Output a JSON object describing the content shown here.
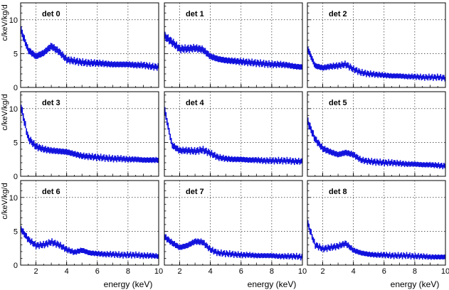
{
  "figure": {
    "ylabel": "c/keV/kg/d",
    "xlabel": "energy (keV)"
  },
  "colors": {
    "data": "#1010dd",
    "axis": "#000000",
    "grid": "#000000"
  },
  "chart_data": {
    "type": "scatter",
    "layout": "3x3 grid of panels",
    "xlabel": "energy (keV)",
    "ylabel": "c/keV/kg/d",
    "xlim": [
      1,
      10
    ],
    "ylim": [
      0,
      12.5
    ],
    "xticks": [
      2,
      4,
      6,
      8,
      10
    ],
    "yticks": [
      0,
      5,
      10
    ],
    "grid": true,
    "series_style": "points with vertical error bars",
    "x": [
      1.0,
      1.5,
      2.0,
      2.5,
      3.0,
      3.5,
      4.0,
      4.5,
      5.0,
      5.5,
      6.0,
      6.5,
      7.0,
      7.5,
      8.0,
      8.5,
      9.0,
      9.5,
      10.0
    ],
    "panels": [
      {
        "name": "det 0",
        "y": [
          8.6,
          5.5,
          4.6,
          5.1,
          6.1,
          5.3,
          4.1,
          3.9,
          3.7,
          3.6,
          3.6,
          3.5,
          3.4,
          3.4,
          3.4,
          3.3,
          3.3,
          3.1,
          3.0
        ]
      },
      {
        "name": "det 1",
        "y": [
          7.6,
          6.7,
          5.7,
          5.7,
          5.8,
          5.6,
          4.6,
          4.2,
          4.0,
          3.9,
          3.8,
          3.7,
          3.6,
          3.5,
          3.4,
          3.4,
          3.3,
          3.1,
          3.0
        ]
      },
      {
        "name": "det 2",
        "y": [
          5.8,
          3.2,
          2.9,
          3.1,
          3.2,
          3.4,
          2.7,
          2.2,
          2.0,
          1.9,
          1.8,
          1.7,
          1.7,
          1.6,
          1.6,
          1.5,
          1.5,
          1.5,
          1.4
        ]
      },
      {
        "name": "det 3",
        "y": [
          10.5,
          5.6,
          4.4,
          4.0,
          3.8,
          3.7,
          3.6,
          3.3,
          3.0,
          2.9,
          2.8,
          2.7,
          2.6,
          2.6,
          2.5,
          2.5,
          2.4,
          2.4,
          2.4
        ]
      },
      {
        "name": "det 4",
        "y": [
          10.0,
          4.6,
          3.8,
          3.8,
          3.7,
          3.9,
          3.4,
          2.8,
          2.6,
          2.5,
          2.5,
          2.4,
          2.4,
          2.3,
          2.3,
          2.3,
          2.3,
          2.2,
          2.2
        ]
      },
      {
        "name": "det 5",
        "y": [
          8.2,
          5.5,
          4.1,
          3.6,
          3.2,
          3.5,
          3.2,
          2.4,
          2.2,
          2.1,
          2.0,
          2.0,
          1.9,
          1.8,
          1.8,
          1.7,
          1.7,
          1.6,
          1.5
        ]
      },
      {
        "name": "det 6",
        "y": [
          5.4,
          3.8,
          2.9,
          3.0,
          3.4,
          3.0,
          2.3,
          1.9,
          2.2,
          1.8,
          1.7,
          1.6,
          1.6,
          1.5,
          1.5,
          1.5,
          1.4,
          1.4,
          1.3
        ]
      },
      {
        "name": "det 7",
        "y": [
          4.2,
          3.3,
          2.6,
          2.9,
          3.5,
          3.4,
          2.3,
          1.8,
          1.7,
          1.6,
          1.5,
          1.5,
          1.4,
          1.4,
          1.4,
          1.3,
          1.3,
          1.3,
          1.2
        ]
      },
      {
        "name": "det 8",
        "y": [
          6.3,
          3.0,
          2.4,
          2.6,
          2.8,
          3.2,
          2.2,
          1.8,
          1.6,
          1.5,
          1.5,
          1.4,
          1.4,
          1.4,
          1.3,
          1.3,
          1.2,
          1.2,
          1.2
        ]
      }
    ]
  }
}
